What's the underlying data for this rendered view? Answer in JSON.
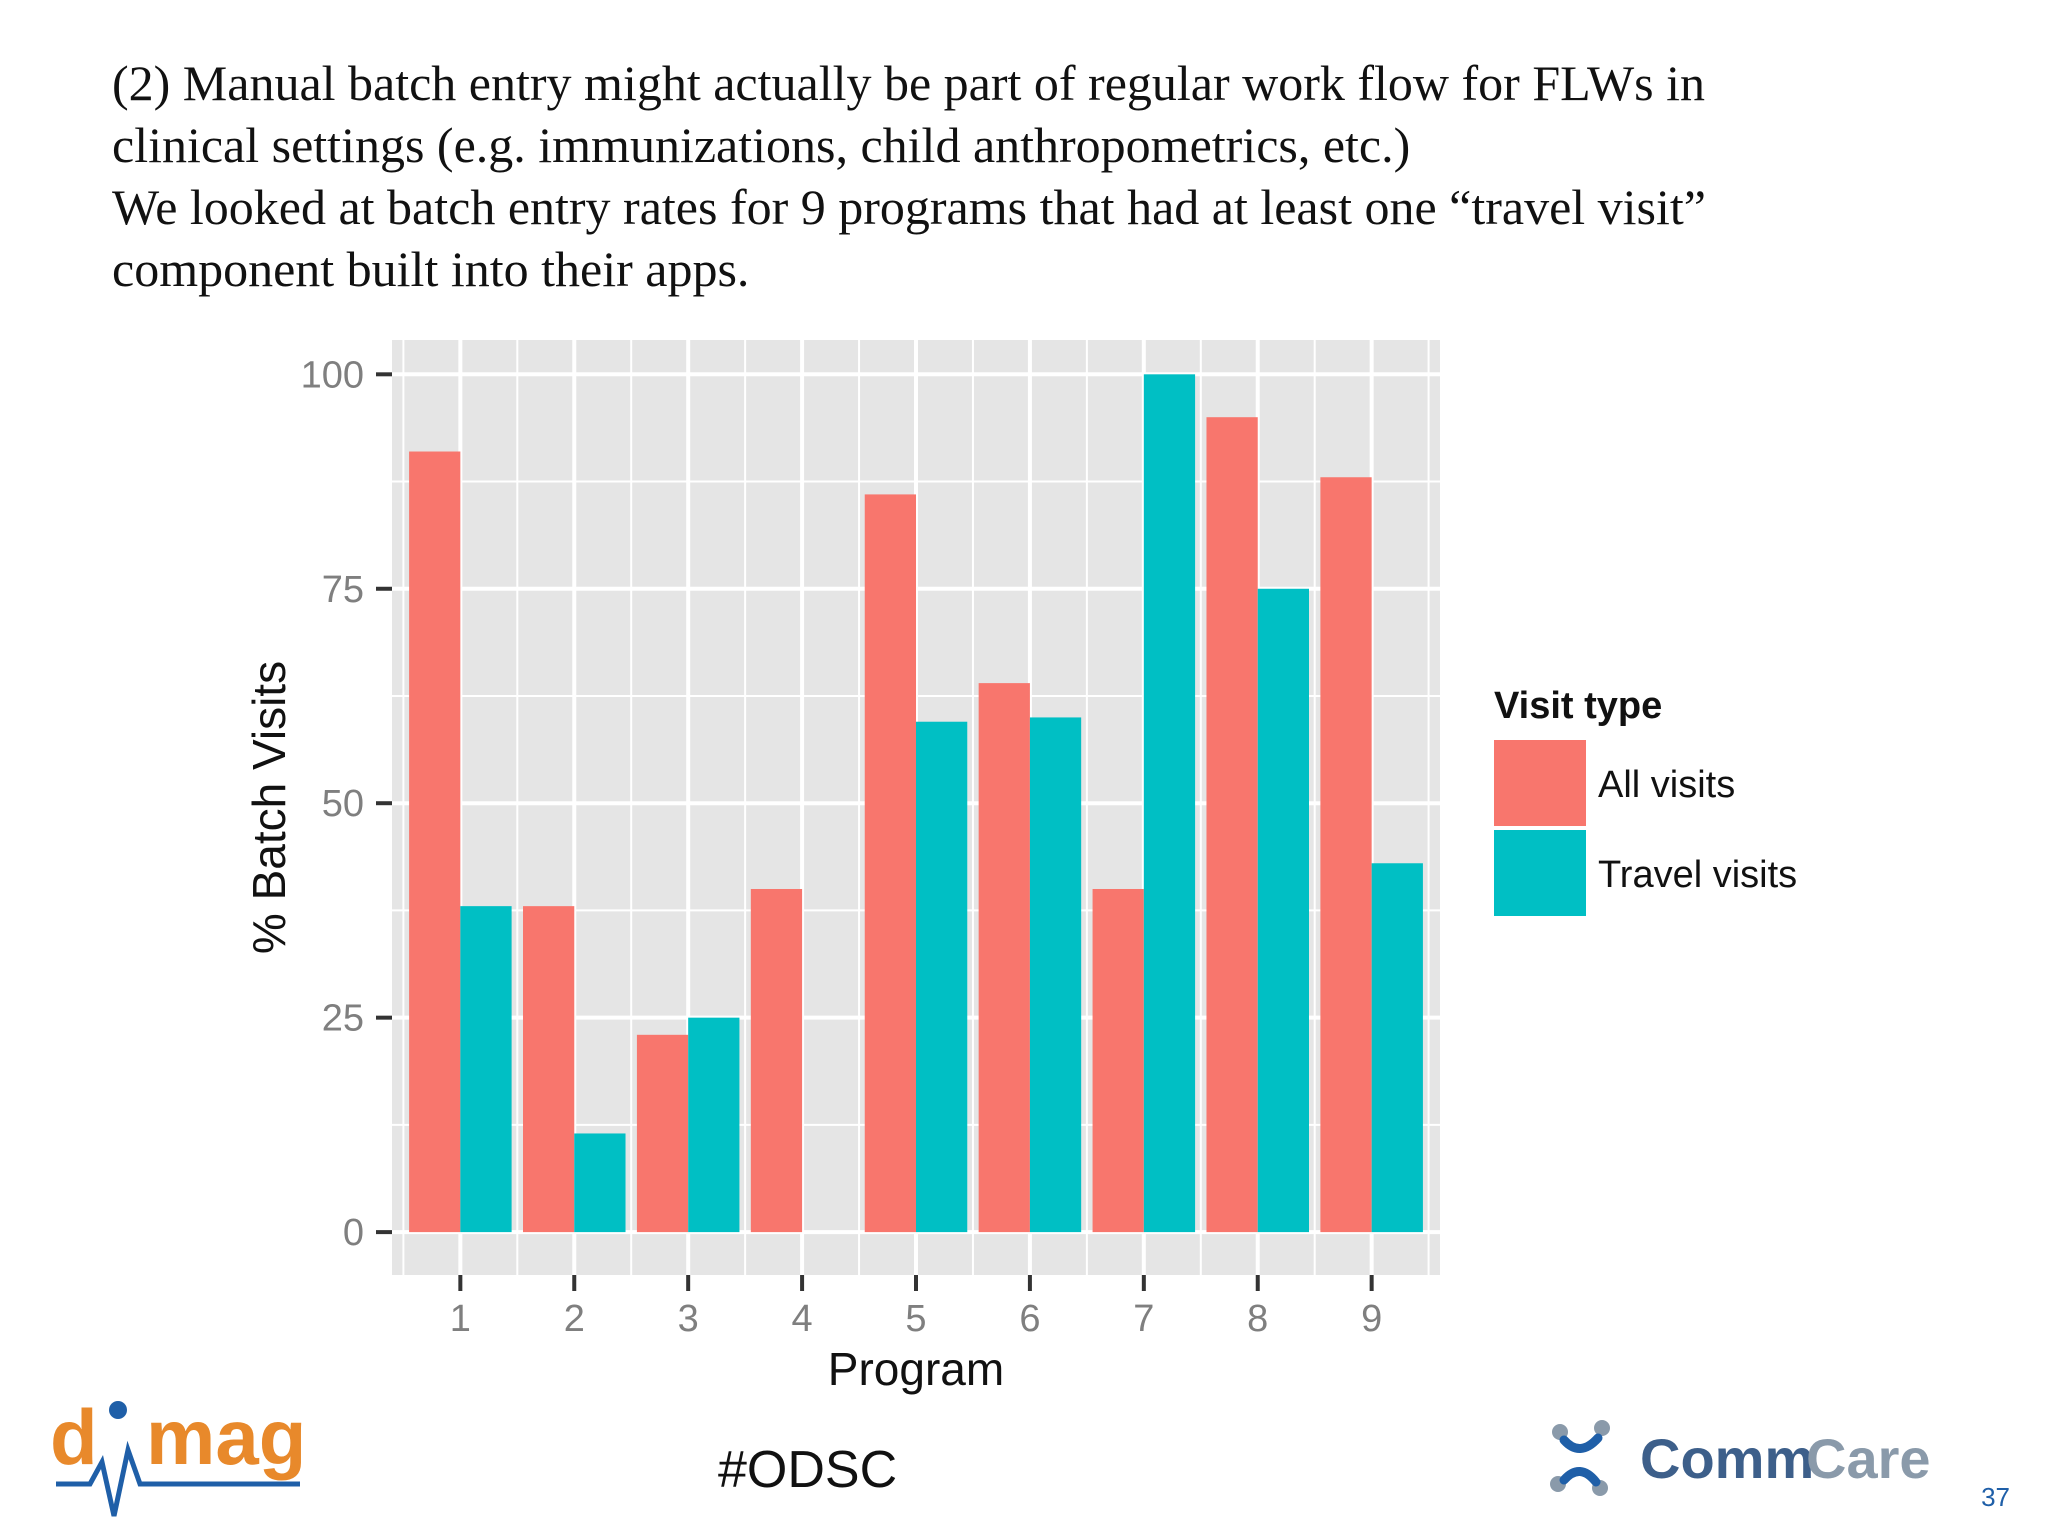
{
  "slide": {
    "text_lines": [
      "(2) Manual batch entry might actually be part of regular work flow for FLWs in",
      "clinical settings (e.g. immunizations, child anthropometrics, etc.)",
      "We looked at batch entry rates for 9 programs that had at least one “travel visit”",
      "component built into their apps."
    ],
    "hashtag": "#ODSC",
    "page_number": "37",
    "logos": {
      "left": "dimagi",
      "right": "CommCare"
    }
  },
  "chart_data": {
    "type": "bar",
    "categories": [
      "1",
      "2",
      "3",
      "4",
      "5",
      "6",
      "7",
      "8",
      "9"
    ],
    "series": [
      {
        "name": "All visits",
        "color": "#f8766d",
        "values": [
          91,
          38,
          23,
          40,
          86,
          64,
          40,
          95,
          88
        ]
      },
      {
        "name": "Travel visits",
        "color": "#00bfc4",
        "values": [
          38,
          11.5,
          25,
          0,
          59.5,
          60,
          100,
          75,
          43
        ]
      }
    ],
    "xlabel": "Program",
    "ylabel": "% Batch Visits",
    "ylim": [
      -5,
      104
    ],
    "yticks": [
      0,
      25,
      50,
      75,
      100
    ],
    "legend": {
      "title": "Visit type",
      "position": "right"
    },
    "grid": true,
    "panel_background": "#e5e5e5",
    "grid_color": "#ffffff"
  }
}
